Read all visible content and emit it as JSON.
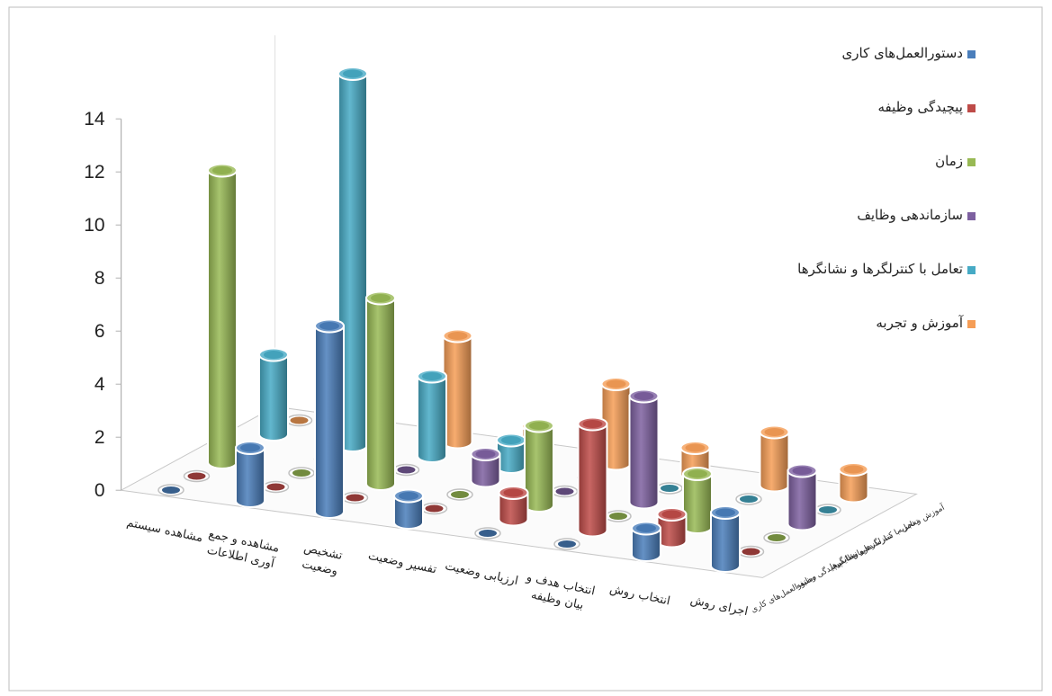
{
  "chart_data": {
    "type": "bar",
    "subtype": "3d-cylinder",
    "ylim": [
      0,
      14
    ],
    "yticks": [
      0,
      2,
      4,
      6,
      8,
      10,
      12,
      14
    ],
    "grid": false,
    "legend_position": "right",
    "categories": [
      [
        "مشاهده سیستم"
      ],
      [
        "مشاهده و جمع",
        "آوری اطلاعات"
      ],
      [
        "تشخیص",
        "وضعیت"
      ],
      [
        "تفسیر وضعیت"
      ],
      [
        "ارزیابی وضعیت"
      ],
      [
        "انتخاب هدف و",
        "بیان وظیفه"
      ],
      [
        "انتخاب روش"
      ],
      [
        "اجرای روش"
      ]
    ],
    "series": [
      {
        "name": "دستورالعمل‌های کاری",
        "short": "دستورالعمل‌های کاری",
        "color": "#4a7ebb",
        "values": [
          0,
          2,
          7,
          1,
          0,
          0,
          1,
          2
        ]
      },
      {
        "name": "پیچیدگی وظیفه",
        "short": "پیچیدگی وظیفه",
        "color": "#be4b48",
        "values": [
          0,
          0,
          0,
          0,
          1,
          4,
          1,
          0
        ]
      },
      {
        "name": "زمان",
        "short": "زمان",
        "color": "#98b954",
        "values": [
          11,
          0,
          7,
          0,
          3,
          0,
          2,
          0
        ]
      },
      {
        "name": "سازماندهی وظایف",
        "short": "سازماندهی وظایف",
        "color": "#7d60a0",
        "values": [
          0,
          0,
          0,
          1,
          0,
          4,
          0,
          2
        ]
      },
      {
        "name": "تعامل با کنترلگرها و نشانگرها",
        "short": "تعامل با کنترلگرها و نشانگرها",
        "color": "#46aac5",
        "values": [
          3,
          14,
          3,
          1,
          0,
          0,
          0,
          0
        ]
      },
      {
        "name": "آموزش و تجربه",
        "short": "آموزش و تجربه",
        "color": "#f59d56",
        "values": [
          0,
          1,
          4,
          1,
          3,
          1,
          2,
          1
        ]
      }
    ]
  }
}
